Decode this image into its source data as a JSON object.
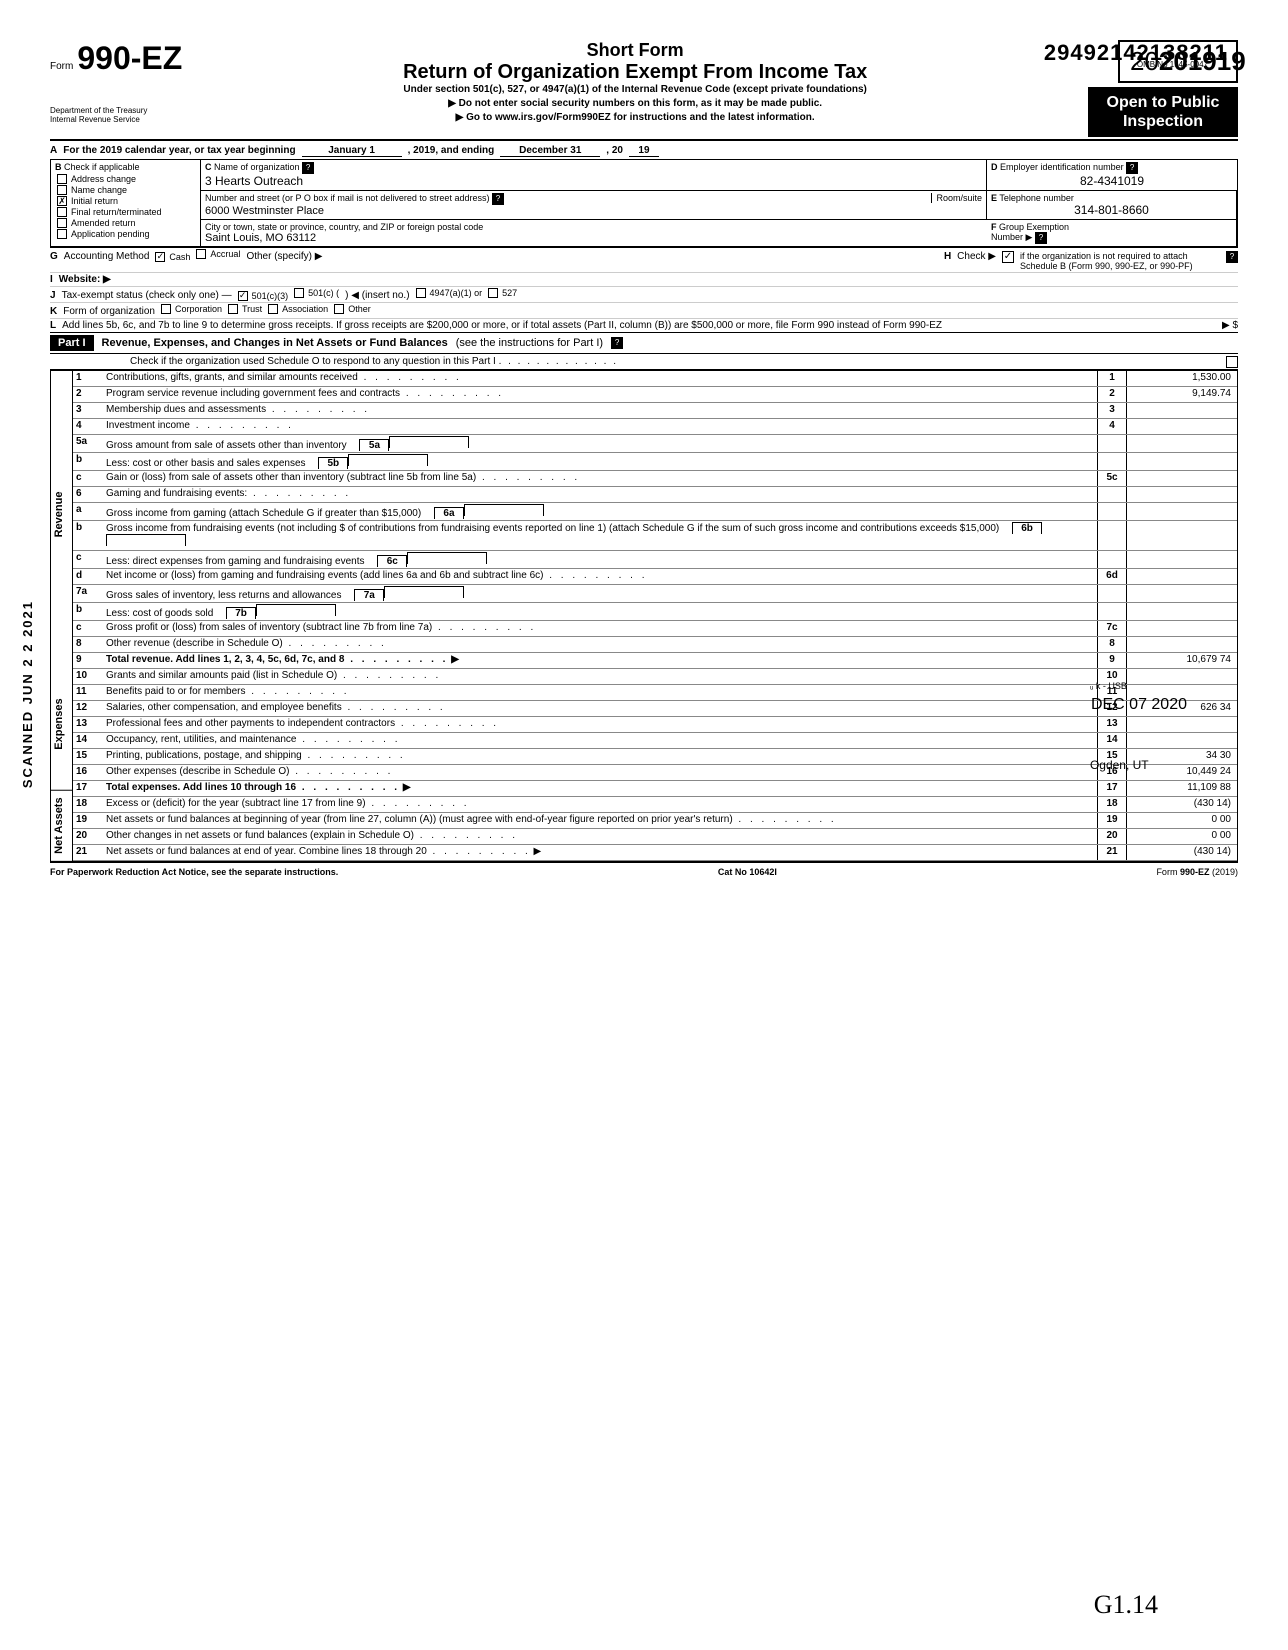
{
  "form": {
    "prefix": "Form",
    "number": "990-EZ",
    "dept1": "Department of the Treasury",
    "dept2": "Internal Revenue Service",
    "seq_number": "29492142138211",
    "omb": "OMB No  1545-0047",
    "year": "2019",
    "short": "Short Form",
    "main_title": "Return of Organization Exempt From Income Tax",
    "sub_title": "Under section 501(c), 527, or 4947(a)(1) of the Internal Revenue Code (except private foundations)",
    "instr1": "Do not enter social security numbers on this form, as it may be made public.",
    "instr2": "Go to www.irs.gov/Form990EZ for instructions and the latest information.",
    "inspect1": "Open to Public",
    "inspect2": "Inspection"
  },
  "block_a": {
    "label": "A",
    "text": "For the 2019 calendar year, or tax year beginning",
    "mid": "January 1",
    "mid2": ", 2019, and ending",
    "end1": "December 31",
    "end2": ", 20",
    "end3": "19"
  },
  "block_b": {
    "label": "B",
    "sub": "Check if applicable",
    "items": [
      {
        "label": "Address change",
        "checked": false
      },
      {
        "label": "Name change",
        "checked": false
      },
      {
        "label": "Initial return",
        "checked": true
      },
      {
        "label": "Final return/terminated",
        "checked": false
      },
      {
        "label": "Amended return",
        "checked": false
      },
      {
        "label": "Application pending",
        "checked": false
      }
    ]
  },
  "block_c": {
    "label_c": "C",
    "label_c_text": "Name of organization",
    "org_name": "3 Hearts Outreach",
    "addr_label": "Number and street (or P O  box if mail is not delivered to street address)",
    "room_label": "Room/suite",
    "addr": "6000 Westminster Place",
    "city_label": "City or town, state or province, country, and ZIP or foreign postal code",
    "city": "Saint Louis, MO 63112"
  },
  "block_d": {
    "label": "D",
    "text": "Employer identification number",
    "value": "82-4341019"
  },
  "block_e": {
    "label": "E",
    "text": "Telephone number",
    "value": "314-801-8660"
  },
  "block_f": {
    "label": "F",
    "text": "Group Exemption",
    "text2": "Number ▶"
  },
  "block_g": {
    "label": "G",
    "text": "Accounting Method",
    "cash": "Cash",
    "accrual": "Accrual",
    "other": "Other (specify) ▶"
  },
  "block_h": {
    "label": "H",
    "text": "Check ▶",
    "text2": "if the organization is not required to attach Schedule B (Form 990, 990-EZ, or 990-PF)"
  },
  "block_i": {
    "label": "I",
    "text": "Website: ▶"
  },
  "block_j": {
    "label": "J",
    "text": "Tax-exempt status (check only one) —",
    "opt1": "501(c)(3)",
    "opt2": "501(c) (",
    "opt2b": ") ◀ (insert no.)",
    "opt3": "4947(a)(1) or",
    "opt4": "527"
  },
  "block_k": {
    "label": "K",
    "text": "Form of organization",
    "opts": [
      "Corporation",
      "Trust",
      "Association",
      "Other"
    ]
  },
  "block_l": {
    "label": "L",
    "text": "Add lines 5b, 6c, and 7b to line 9 to determine gross receipts. If gross receipts are $200,000 or more, or if total assets (Part II, column (B)) are $500,000 or more, file Form 990 instead of Form 990-EZ",
    "arrow": "▶  $"
  },
  "part1": {
    "label": "Part I",
    "title": "Revenue, Expenses, and Changes in Net Assets or Fund Balances",
    "title_suffix": "(see the instructions for Part I)",
    "check_line": "Check if the organization used Schedule O to respond to any question in this Part I"
  },
  "sections": {
    "revenue": "Revenue",
    "expenses": "Expenses",
    "netassets": "Net Assets"
  },
  "lines": [
    {
      "n": "1",
      "d": "Contributions, gifts, grants, and similar amounts received",
      "box": "1",
      "v": "1,530.00"
    },
    {
      "n": "2",
      "d": "Program service revenue including government fees and contracts",
      "box": "2",
      "v": "9,149.74"
    },
    {
      "n": "3",
      "d": "Membership dues and assessments",
      "box": "3",
      "v": ""
    },
    {
      "n": "4",
      "d": "Investment income",
      "box": "4",
      "v": ""
    },
    {
      "n": "5a",
      "d": "Gross amount from sale of assets other than inventory",
      "ibox": "5a",
      "box": "",
      "v": ""
    },
    {
      "n": "b",
      "d": "Less: cost or other basis and sales expenses",
      "ibox": "5b",
      "box": "",
      "v": ""
    },
    {
      "n": "c",
      "d": "Gain or (loss) from sale of assets other than inventory (subtract line 5b from line 5a)",
      "box": "5c",
      "v": ""
    },
    {
      "n": "6",
      "d": "Gaming and fundraising events:",
      "box": "",
      "v": ""
    },
    {
      "n": "a",
      "d": "Gross income from gaming (attach Schedule G if greater than $15,000)",
      "ibox": "6a",
      "box": "",
      "v": ""
    },
    {
      "n": "b",
      "d": "Gross income from fundraising events (not including  $                    of contributions from fundraising events reported on line 1) (attach Schedule G if the sum of such gross income and contributions exceeds $15,000)",
      "ibox": "6b",
      "box": "",
      "v": ""
    },
    {
      "n": "c",
      "d": "Less: direct expenses from gaming and fundraising events",
      "ibox": "6c",
      "box": "",
      "v": ""
    },
    {
      "n": "d",
      "d": "Net income or (loss) from gaming and fundraising events (add lines 6a and 6b and subtract line 6c)",
      "box": "6d",
      "v": ""
    },
    {
      "n": "7a",
      "d": "Gross sales of inventory, less returns and allowances",
      "ibox": "7a",
      "box": "",
      "v": ""
    },
    {
      "n": "b",
      "d": "Less: cost of goods sold",
      "ibox": "7b",
      "box": "",
      "v": ""
    },
    {
      "n": "c",
      "d": "Gross profit or (loss) from sales of inventory (subtract line 7b from line 7a)",
      "box": "7c",
      "v": ""
    },
    {
      "n": "8",
      "d": "Other revenue (describe in Schedule O)",
      "box": "8",
      "v": ""
    },
    {
      "n": "9",
      "d": "Total revenue. Add lines 1, 2, 3, 4, 5c, 6d, 7c, and 8",
      "box": "9",
      "v": "10,679 74",
      "bold": true
    },
    {
      "n": "10",
      "d": "Grants and similar amounts paid (list in Schedule O)",
      "box": "10",
      "v": ""
    },
    {
      "n": "11",
      "d": "Benefits paid to or for members",
      "box": "11",
      "v": ""
    },
    {
      "n": "12",
      "d": "Salaries, other compensation, and employee benefits",
      "box": "12",
      "v": "626 34"
    },
    {
      "n": "13",
      "d": "Professional fees and other payments to independent contractors",
      "box": "13",
      "v": ""
    },
    {
      "n": "14",
      "d": "Occupancy, rent, utilities, and maintenance",
      "box": "14",
      "v": ""
    },
    {
      "n": "15",
      "d": "Printing, publications, postage, and shipping",
      "box": "15",
      "v": "34 30"
    },
    {
      "n": "16",
      "d": "Other expenses (describe in Schedule O)",
      "box": "16",
      "v": "10,449 24"
    },
    {
      "n": "17",
      "d": "Total expenses. Add lines 10 through 16",
      "box": "17",
      "v": "11,109 88",
      "bold": true
    },
    {
      "n": "18",
      "d": "Excess or (deficit) for the year (subtract line 17 from line 9)",
      "box": "18",
      "v": "(430 14)"
    },
    {
      "n": "19",
      "d": "Net assets or fund balances at beginning of year (from line 27, column (A)) (must agree with end-of-year figure reported on prior year's return)",
      "box": "19",
      "v": "0 00"
    },
    {
      "n": "20",
      "d": "Other changes in net assets or fund balances (explain in Schedule O)",
      "box": "20",
      "v": "0 00"
    },
    {
      "n": "21",
      "d": "Net assets or fund balances at end of year. Combine lines 18 through 20",
      "box": "21",
      "v": "(430 14)"
    }
  ],
  "footer": {
    "left": "For Paperwork Reduction Act Notice, see the separate instructions.",
    "mid": "Cat No  10642I",
    "right": "Form 990-EZ (2019)"
  },
  "stamps": {
    "vertical": "SCANNED JUN 2 2 2021",
    "received": "DEC 07 2020",
    "ogden": "Ogden, UT",
    "handwrite": "G1.14"
  }
}
